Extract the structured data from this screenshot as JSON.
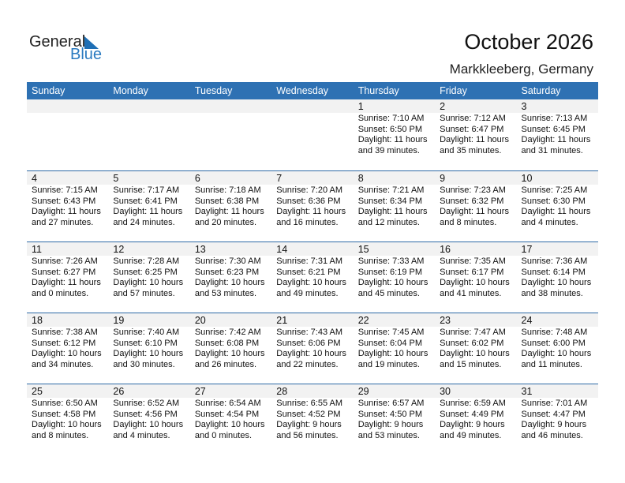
{
  "logo": {
    "line1": "General",
    "line2": "Blue"
  },
  "title": "October 2026",
  "location": "Markkleeberg, Germany",
  "weekdays": [
    "Sunday",
    "Monday",
    "Tuesday",
    "Wednesday",
    "Thursday",
    "Friday",
    "Saturday"
  ],
  "weeks": [
    [
      null,
      null,
      null,
      null,
      {
        "day": "1",
        "sunrise": "Sunrise: 7:10 AM",
        "sunset": "Sunset: 6:50 PM",
        "daylight1": "Daylight: 11 hours",
        "daylight2": "and 39 minutes."
      },
      {
        "day": "2",
        "sunrise": "Sunrise: 7:12 AM",
        "sunset": "Sunset: 6:47 PM",
        "daylight1": "Daylight: 11 hours",
        "daylight2": "and 35 minutes."
      },
      {
        "day": "3",
        "sunrise": "Sunrise: 7:13 AM",
        "sunset": "Sunset: 6:45 PM",
        "daylight1": "Daylight: 11 hours",
        "daylight2": "and 31 minutes."
      }
    ],
    [
      {
        "day": "4",
        "sunrise": "Sunrise: 7:15 AM",
        "sunset": "Sunset: 6:43 PM",
        "daylight1": "Daylight: 11 hours",
        "daylight2": "and 27 minutes."
      },
      {
        "day": "5",
        "sunrise": "Sunrise: 7:17 AM",
        "sunset": "Sunset: 6:41 PM",
        "daylight1": "Daylight: 11 hours",
        "daylight2": "and 24 minutes."
      },
      {
        "day": "6",
        "sunrise": "Sunrise: 7:18 AM",
        "sunset": "Sunset: 6:38 PM",
        "daylight1": "Daylight: 11 hours",
        "daylight2": "and 20 minutes."
      },
      {
        "day": "7",
        "sunrise": "Sunrise: 7:20 AM",
        "sunset": "Sunset: 6:36 PM",
        "daylight1": "Daylight: 11 hours",
        "daylight2": "and 16 minutes."
      },
      {
        "day": "8",
        "sunrise": "Sunrise: 7:21 AM",
        "sunset": "Sunset: 6:34 PM",
        "daylight1": "Daylight: 11 hours",
        "daylight2": "and 12 minutes."
      },
      {
        "day": "9",
        "sunrise": "Sunrise: 7:23 AM",
        "sunset": "Sunset: 6:32 PM",
        "daylight1": "Daylight: 11 hours",
        "daylight2": "and 8 minutes."
      },
      {
        "day": "10",
        "sunrise": "Sunrise: 7:25 AM",
        "sunset": "Sunset: 6:30 PM",
        "daylight1": "Daylight: 11 hours",
        "daylight2": "and 4 minutes."
      }
    ],
    [
      {
        "day": "11",
        "sunrise": "Sunrise: 7:26 AM",
        "sunset": "Sunset: 6:27 PM",
        "daylight1": "Daylight: 11 hours",
        "daylight2": "and 0 minutes."
      },
      {
        "day": "12",
        "sunrise": "Sunrise: 7:28 AM",
        "sunset": "Sunset: 6:25 PM",
        "daylight1": "Daylight: 10 hours",
        "daylight2": "and 57 minutes."
      },
      {
        "day": "13",
        "sunrise": "Sunrise: 7:30 AM",
        "sunset": "Sunset: 6:23 PM",
        "daylight1": "Daylight: 10 hours",
        "daylight2": "and 53 minutes."
      },
      {
        "day": "14",
        "sunrise": "Sunrise: 7:31 AM",
        "sunset": "Sunset: 6:21 PM",
        "daylight1": "Daylight: 10 hours",
        "daylight2": "and 49 minutes."
      },
      {
        "day": "15",
        "sunrise": "Sunrise: 7:33 AM",
        "sunset": "Sunset: 6:19 PM",
        "daylight1": "Daylight: 10 hours",
        "daylight2": "and 45 minutes."
      },
      {
        "day": "16",
        "sunrise": "Sunrise: 7:35 AM",
        "sunset": "Sunset: 6:17 PM",
        "daylight1": "Daylight: 10 hours",
        "daylight2": "and 41 minutes."
      },
      {
        "day": "17",
        "sunrise": "Sunrise: 7:36 AM",
        "sunset": "Sunset: 6:14 PM",
        "daylight1": "Daylight: 10 hours",
        "daylight2": "and 38 minutes."
      }
    ],
    [
      {
        "day": "18",
        "sunrise": "Sunrise: 7:38 AM",
        "sunset": "Sunset: 6:12 PM",
        "daylight1": "Daylight: 10 hours",
        "daylight2": "and 34 minutes."
      },
      {
        "day": "19",
        "sunrise": "Sunrise: 7:40 AM",
        "sunset": "Sunset: 6:10 PM",
        "daylight1": "Daylight: 10 hours",
        "daylight2": "and 30 minutes."
      },
      {
        "day": "20",
        "sunrise": "Sunrise: 7:42 AM",
        "sunset": "Sunset: 6:08 PM",
        "daylight1": "Daylight: 10 hours",
        "daylight2": "and 26 minutes."
      },
      {
        "day": "21",
        "sunrise": "Sunrise: 7:43 AM",
        "sunset": "Sunset: 6:06 PM",
        "daylight1": "Daylight: 10 hours",
        "daylight2": "and 22 minutes."
      },
      {
        "day": "22",
        "sunrise": "Sunrise: 7:45 AM",
        "sunset": "Sunset: 6:04 PM",
        "daylight1": "Daylight: 10 hours",
        "daylight2": "and 19 minutes."
      },
      {
        "day": "23",
        "sunrise": "Sunrise: 7:47 AM",
        "sunset": "Sunset: 6:02 PM",
        "daylight1": "Daylight: 10 hours",
        "daylight2": "and 15 minutes."
      },
      {
        "day": "24",
        "sunrise": "Sunrise: 7:48 AM",
        "sunset": "Sunset: 6:00 PM",
        "daylight1": "Daylight: 10 hours",
        "daylight2": "and 11 minutes."
      }
    ],
    [
      {
        "day": "25",
        "sunrise": "Sunrise: 6:50 AM",
        "sunset": "Sunset: 4:58 PM",
        "daylight1": "Daylight: 10 hours",
        "daylight2": "and 8 minutes."
      },
      {
        "day": "26",
        "sunrise": "Sunrise: 6:52 AM",
        "sunset": "Sunset: 4:56 PM",
        "daylight1": "Daylight: 10 hours",
        "daylight2": "and 4 minutes."
      },
      {
        "day": "27",
        "sunrise": "Sunrise: 6:54 AM",
        "sunset": "Sunset: 4:54 PM",
        "daylight1": "Daylight: 10 hours",
        "daylight2": "and 0 minutes."
      },
      {
        "day": "28",
        "sunrise": "Sunrise: 6:55 AM",
        "sunset": "Sunset: 4:52 PM",
        "daylight1": "Daylight: 9 hours",
        "daylight2": "and 56 minutes."
      },
      {
        "day": "29",
        "sunrise": "Sunrise: 6:57 AM",
        "sunset": "Sunset: 4:50 PM",
        "daylight1": "Daylight: 9 hours",
        "daylight2": "and 53 minutes."
      },
      {
        "day": "30",
        "sunrise": "Sunrise: 6:59 AM",
        "sunset": "Sunset: 4:49 PM",
        "daylight1": "Daylight: 9 hours",
        "daylight2": "and 49 minutes."
      },
      {
        "day": "31",
        "sunrise": "Sunrise: 7:01 AM",
        "sunset": "Sunset: 4:47 PM",
        "daylight1": "Daylight: 9 hours",
        "daylight2": "and 46 minutes."
      }
    ]
  ]
}
